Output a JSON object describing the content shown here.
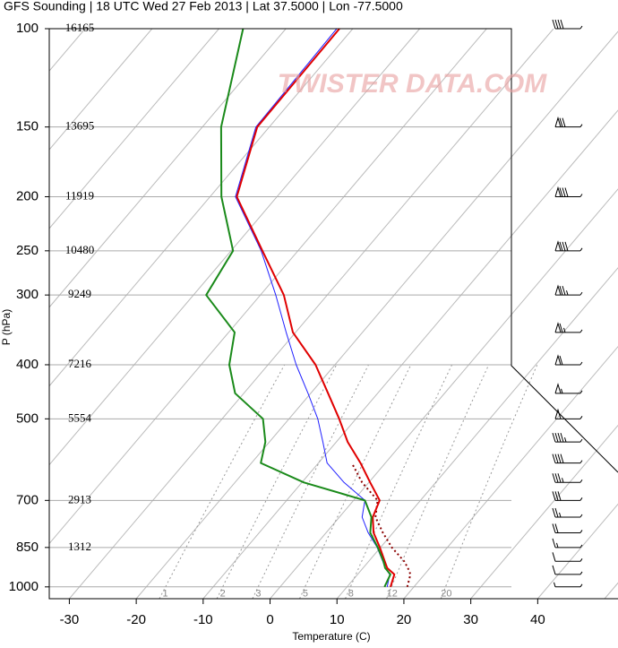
{
  "chart_data": {
    "type": "skewt",
    "title": "GFS Sounding | 18 UTC Wed 27 Feb 2013 | Lat 37.5000 | Lon -77.5000",
    "xlabel": "Temperature (C)",
    "ylabel": "P (hPa)",
    "watermark": "TWISTER DATA.COM",
    "xlim": [
      -33,
      52
    ],
    "xticks": [
      -30,
      -20,
      -10,
      0,
      10,
      20,
      30,
      40
    ],
    "ylim": [
      1050,
      100
    ],
    "log_y": true,
    "yticks": [
      100,
      150,
      200,
      250,
      300,
      400,
      500,
      700,
      850,
      1000
    ],
    "heights": [
      16165,
      13695,
      11919,
      10480,
      9249,
      7216,
      5554,
      2913,
      1312,
      null
    ],
    "isotherms": [
      -110,
      -100,
      -90,
      -80,
      -70,
      -60,
      -50,
      -40,
      -30,
      -20,
      -10,
      0,
      10,
      20,
      30,
      40,
      50
    ],
    "mixing_ratios": [
      1,
      2,
      3,
      5,
      8,
      12,
      20
    ],
    "pressure": [
      1000,
      950,
      925,
      900,
      850,
      800,
      750,
      700,
      650,
      600,
      550,
      500,
      450,
      400,
      350,
      300,
      250,
      200,
      150,
      100
    ],
    "series": [
      {
        "color": "#8b0000",
        "dashed": true,
        "width": 2,
        "values": [
          19.0,
          17.9,
          16.7,
          15.3,
          11.7,
          8.5,
          5.4,
          3.6,
          -1.0,
          -5.0,
          null,
          null,
          null,
          null,
          null,
          null,
          null,
          null,
          null,
          null
        ]
      },
      {
        "color": "#2020ff",
        "width": 1,
        "values": [
          16.0,
          14.8,
          13.3,
          12.1,
          9.5,
          6.3,
          3.4,
          1.7,
          -3.7,
          -8.7,
          -12.0,
          -15.7,
          -20.4,
          -25.8,
          -31.4,
          -37.7,
          -45.5,
          -56.2,
          -62.0,
          -62.4
        ]
      },
      {
        "color": "#e00000",
        "width": 2,
        "values": [
          16.5,
          15.5,
          13.6,
          12.4,
          9.9,
          7.1,
          5.0,
          3.9,
          0.2,
          -3.7,
          -8.3,
          -12.5,
          -17.4,
          -22.9,
          -30.4,
          -36.5,
          -45.3,
          -56.0,
          -61.8,
          -62.0
        ]
      },
      {
        "color": "#1a8a1a",
        "width": 2,
        "values": [
          15.6,
          14.9,
          13.3,
          12.2,
          9.6,
          6.6,
          4.8,
          1.7,
          -9.7,
          -18.6,
          -20.6,
          -23.9,
          -31.3,
          -35.8,
          -39.1,
          -48.1,
          -49.7,
          -58.3,
          -67.2,
          -76.4
        ]
      }
    ],
    "wind_pressure": [
      100,
      150,
      200,
      250,
      300,
      350,
      400,
      450,
      500,
      550,
      600,
      650,
      700,
      750,
      800,
      850,
      900,
      950,
      1000
    ],
    "wind_speed": [
      40,
      70,
      80,
      80,
      75,
      65,
      60,
      55,
      50,
      45,
      40,
      35,
      30,
      25,
      20,
      15,
      10,
      10,
      5
    ]
  }
}
